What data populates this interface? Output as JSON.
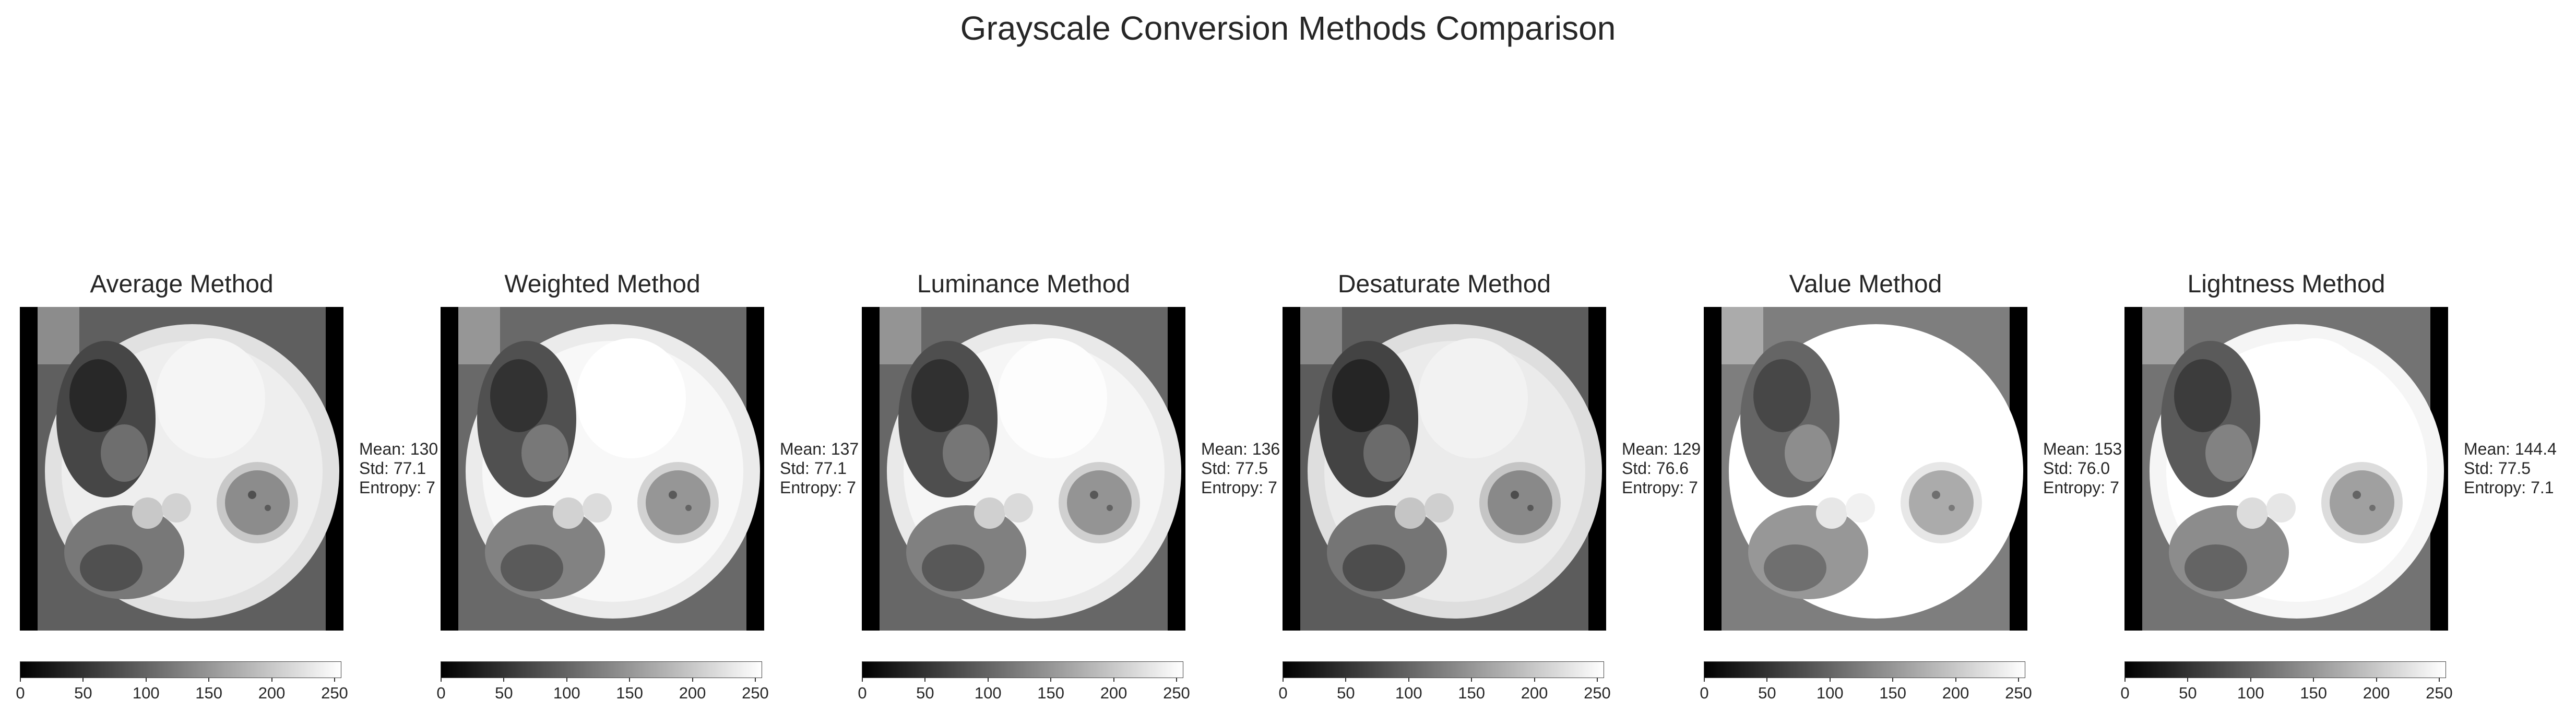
{
  "figure_title": "Grayscale Conversion Methods Comparison",
  "chart_data": [
    {
      "type": "image",
      "title": "Average Method",
      "stats": [
        "Mean: 130",
        "Std: 77.1",
        "Entropy: 7"
      ],
      "colorbar": {
        "range": [
          0,
          255
        ],
        "ticks": [
          "0",
          "50",
          "100",
          "150",
          "200",
          "250"
        ],
        "colormap": "gray"
      },
      "brightness": 0.0
    },
    {
      "type": "image",
      "title": "Weighted Method",
      "stats": [
        "Mean: 137",
        "Std: 77.1",
        "Entropy: 7"
      ],
      "colorbar": {
        "range": [
          0,
          255
        ],
        "ticks": [
          "0",
          "50",
          "100",
          "150",
          "200",
          "250"
        ],
        "colormap": "gray"
      },
      "brightness": 0.04
    },
    {
      "type": "image",
      "title": "Luminance Method",
      "stats": [
        "Mean: 136",
        "Std: 77.5",
        "Entropy: 7"
      ],
      "colorbar": {
        "range": [
          0,
          255
        ],
        "ticks": [
          "0",
          "50",
          "100",
          "150",
          "200",
          "250"
        ],
        "colormap": "gray"
      },
      "brightness": 0.03
    },
    {
      "type": "image",
      "title": "Desaturate Method",
      "stats": [
        "Mean: 129",
        "Std: 76.6",
        "Entropy: 7"
      ],
      "colorbar": {
        "range": [
          0,
          255
        ],
        "ticks": [
          "0",
          "50",
          "100",
          "150",
          "200",
          "250"
        ],
        "colormap": "gray"
      },
      "brightness": -0.01
    },
    {
      "type": "image",
      "title": "Value Method",
      "stats": [
        "Mean: 153",
        "Std: 76.0",
        "Entropy: 7"
      ],
      "colorbar": {
        "range": [
          0,
          255
        ],
        "ticks": [
          "0",
          "50",
          "100",
          "150",
          "200",
          "250"
        ],
        "colormap": "gray"
      },
      "brightness": 0.12
    },
    {
      "type": "image",
      "title": "Lightness Method",
      "stats": [
        "Mean: 144.4",
        "Std: 77.5",
        "Entropy: 7.1"
      ],
      "colorbar": {
        "range": [
          0,
          255
        ],
        "ticks": [
          "0",
          "50",
          "100",
          "150",
          "200",
          "250"
        ],
        "colormap": "gray"
      },
      "brightness": 0.08
    }
  ]
}
